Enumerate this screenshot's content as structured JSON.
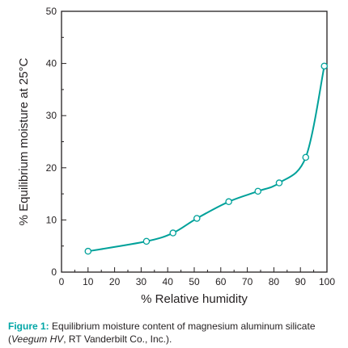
{
  "chart_data": {
    "type": "line",
    "xlabel": "% Relative humidity",
    "ylabel": "% Equilibrium moisture at 25°C",
    "xlim": [
      0,
      100
    ],
    "ylim": [
      0,
      50
    ],
    "x_ticks": [
      0,
      10,
      20,
      30,
      40,
      50,
      60,
      70,
      80,
      90,
      100
    ],
    "y_ticks": [
      0,
      10,
      20,
      30,
      40,
      50
    ],
    "grid": false,
    "series": [
      {
        "x": [
          10,
          32,
          42,
          51,
          63,
          74,
          82,
          92,
          99
        ],
        "y": [
          4.0,
          5.9,
          7.5,
          10.3,
          13.5,
          15.5,
          17.1,
          22.0,
          39.5
        ]
      }
    ],
    "line_color": "#00a19a",
    "marker_fill": "#ffffff"
  },
  "caption": {
    "label": "Figure 1:",
    "text1": "Equilibrium moisture content of magnesium aluminum silicate",
    "paren_open": "(",
    "italic": "Veegum HV",
    "text2": ", RT Vanderbilt Co., Inc.)."
  }
}
